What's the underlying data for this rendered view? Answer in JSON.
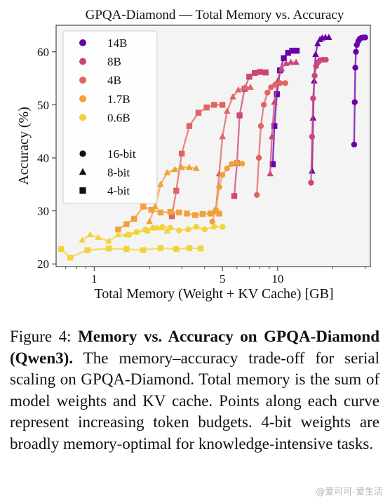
{
  "chart_data": {
    "type": "line",
    "title": "GPQA-Diamond — Total Memory vs. Accuracy",
    "xlabel": "Total Memory (Weight + KV Cache) [GB]",
    "ylabel": "Accuracy (%)",
    "xscale": "log",
    "xlim": [
      0.62,
      32
    ],
    "ylim": [
      19.5,
      65
    ],
    "xticks": [
      1,
      5,
      10
    ],
    "xtick_labels": [
      "1",
      "5",
      "10"
    ],
    "yticks": [
      20,
      30,
      40,
      50,
      60
    ],
    "ytick_labels": [
      "20",
      "30",
      "40",
      "50",
      "60"
    ],
    "grid": false,
    "legend": {
      "placement": "top-left",
      "models": [
        {
          "name": "14B",
          "color": "#6a00a8"
        },
        {
          "name": "8B",
          "color": "#cc4778"
        },
        {
          "name": "4B",
          "color": "#e16462"
        },
        {
          "name": "1.7B",
          "color": "#f0a23a"
        },
        {
          "name": "0.6B",
          "color": "#f2d43a"
        }
      ],
      "precisions": [
        {
          "name": "16-bit",
          "marker": "circle"
        },
        {
          "name": "8-bit",
          "marker": "triangle"
        },
        {
          "name": "4-bit",
          "marker": "square"
        }
      ]
    },
    "series": [
      {
        "model": "14B",
        "precision": "16-bit",
        "color": "#6a00a8",
        "marker": "circle",
        "x": [
          26.1,
          26.3,
          26.5,
          26.7,
          27.0,
          27.5,
          28.0,
          28.5,
          29.2,
          30.0
        ],
        "y": [
          42.5,
          50.5,
          57.0,
          60.0,
          61.3,
          62.0,
          62.4,
          62.6,
          62.7,
          62.7
        ]
      },
      {
        "model": "14B",
        "precision": "8-bit",
        "color": "#6a00a8",
        "marker": "triangle",
        "x": [
          15.4,
          15.6,
          15.8,
          16.1,
          16.5,
          17.0,
          17.5,
          18.2,
          19.0
        ],
        "y": [
          37.5,
          47.5,
          54.5,
          59.5,
          61.5,
          62.3,
          62.6,
          62.7,
          62.7
        ]
      },
      {
        "model": "14B",
        "precision": "4-bit",
        "color": "#6a00a8",
        "marker": "square",
        "x": [
          9.4,
          9.6,
          9.9,
          10.3,
          10.8,
          11.4,
          12.0,
          12.7
        ],
        "y": [
          38.8,
          46.0,
          52.0,
          56.5,
          58.8,
          59.8,
          60.2,
          60.2
        ]
      },
      {
        "model": "8B",
        "precision": "16-bit",
        "color": "#cc4778",
        "marker": "circle",
        "x": [
          15.2,
          15.4,
          15.6,
          15.9,
          16.2,
          16.6,
          17.0,
          17.6,
          18.3
        ],
        "y": [
          35.3,
          44.0,
          51.2,
          55.5,
          57.3,
          58.0,
          58.4,
          58.5,
          58.5
        ]
      },
      {
        "model": "8B",
        "precision": "8-bit",
        "color": "#cc4778",
        "marker": "triangle",
        "x": [
          9.1,
          9.3,
          9.6,
          10.0,
          10.5,
          11.1,
          11.8,
          12.6
        ],
        "y": [
          37.0,
          44.0,
          50.5,
          54.5,
          56.8,
          57.8,
          58.0,
          58.0
        ]
      },
      {
        "model": "8B",
        "precision": "4-bit",
        "color": "#cc4778",
        "marker": "square",
        "x": [
          5.8,
          6.0,
          6.2,
          6.6,
          7.0,
          7.5,
          8.0,
          8.6
        ],
        "y": [
          32.8,
          39.0,
          48.0,
          53.0,
          55.3,
          56.0,
          56.2,
          56.1
        ]
      },
      {
        "model": "4B",
        "precision": "16-bit",
        "color": "#e16462",
        "marker": "circle",
        "x": [
          7.7,
          7.9,
          8.1,
          8.4,
          8.8,
          9.2,
          9.7,
          10.3,
          11.0
        ],
        "y": [
          33.0,
          40.0,
          46.0,
          50.0,
          52.3,
          53.3,
          53.8,
          54.1,
          54.1
        ]
      },
      {
        "model": "4B",
        "precision": "8-bit",
        "color": "#e16462",
        "marker": "triangle",
        "x": [
          4.6,
          4.8,
          5.0,
          5.3,
          5.7,
          6.1,
          6.6,
          7.1
        ],
        "y": [
          30.0,
          37.0,
          44.0,
          48.8,
          51.5,
          52.8,
          53.2,
          53.3
        ]
      },
      {
        "model": "4B",
        "precision": "4-bit",
        "color": "#e16462",
        "marker": "square",
        "x": [
          2.65,
          2.8,
          3.0,
          3.3,
          3.7,
          4.1,
          4.5,
          5.0
        ],
        "y": [
          29.0,
          33.8,
          40.8,
          46.0,
          48.5,
          49.5,
          50.0,
          50.0
        ]
      },
      {
        "model": "1.7B",
        "precision": "16-bit",
        "color": "#f0a23a",
        "marker": "circle",
        "x": [
          4.4,
          4.6,
          4.8,
          5.0,
          5.3,
          5.6,
          6.0,
          6.4
        ],
        "y": [
          28.0,
          30.2,
          34.5,
          36.8,
          38.0,
          38.8,
          39.0,
          38.9
        ]
      },
      {
        "model": "1.7B",
        "precision": "8-bit",
        "color": "#f0a23a",
        "marker": "triangle",
        "x": [
          2.0,
          2.15,
          2.3,
          2.5,
          2.75,
          3.0,
          3.3,
          3.6
        ],
        "y": [
          28.0,
          30.8,
          35.0,
          37.2,
          37.8,
          38.2,
          38.2,
          38.0
        ]
      },
      {
        "model": "1.7B",
        "precision": "4-bit",
        "color": "#f0a23a",
        "marker": "square",
        "x": [
          1.35,
          1.5,
          1.65,
          1.85,
          2.05,
          2.3,
          2.6,
          2.9
        ],
        "y": [
          26.5,
          27.5,
          28.5,
          30.8,
          30.2,
          29.7,
          29.8,
          29.7
        ]
      },
      {
        "model": "1.7B",
        "precision": "4-bit",
        "color": "#f0a23a",
        "marker": "square",
        "x": [
          3.2,
          3.55,
          3.9,
          4.3,
          4.8
        ],
        "y": [
          29.5,
          29.2,
          29.4,
          29.5,
          29.5
        ]
      },
      {
        "model": "0.6B",
        "precision": "16-bit",
        "color": "#f2d43a",
        "marker": "circle",
        "x": [
          1.55,
          1.7,
          1.9,
          2.1,
          2.35,
          2.6,
          2.9,
          3.25,
          3.6,
          4.0,
          4.5,
          5.0
        ],
        "y": [
          25.5,
          26.0,
          26.5,
          26.8,
          27.0,
          26.8,
          26.3,
          26.5,
          27.0,
          26.5,
          27.0,
          27.0
        ]
      },
      {
        "model": "0.6B",
        "precision": "8-bit",
        "color": "#f2d43a",
        "marker": "triangle",
        "x": [
          0.86,
          0.95,
          1.05,
          1.2,
          1.35,
          1.5,
          1.7,
          1.95,
          2.2,
          2.5
        ],
        "y": [
          24.5,
          25.5,
          25.0,
          24.3,
          25.5,
          25.5,
          26.0,
          26.2,
          26.8,
          26.2
        ]
      },
      {
        "model": "0.6B",
        "precision": "4-bit",
        "color": "#f2d43a",
        "marker": "square",
        "x": [
          0.66,
          0.74,
          0.92,
          1.2,
          1.5,
          1.85,
          2.3,
          2.8,
          3.3,
          3.8
        ],
        "y": [
          22.8,
          21.2,
          22.6,
          22.9,
          22.8,
          22.6,
          23.0,
          22.8,
          23.0,
          22.9
        ]
      }
    ]
  },
  "caption": {
    "prefix": "Figure 4: ",
    "bold": "Memory vs. Accuracy on GPQA-Diamond (Qwen3).",
    "body": " The memory–accuracy trade-off for serial scaling on GPQA-Diamond. Total memory is the sum of model weights and KV cache. Points along each curve represent increasing token budgets. 4-bit weights are broadly memory-optimal for knowledge-intensive tasks."
  },
  "watermark": "@爱可可-爱生活"
}
